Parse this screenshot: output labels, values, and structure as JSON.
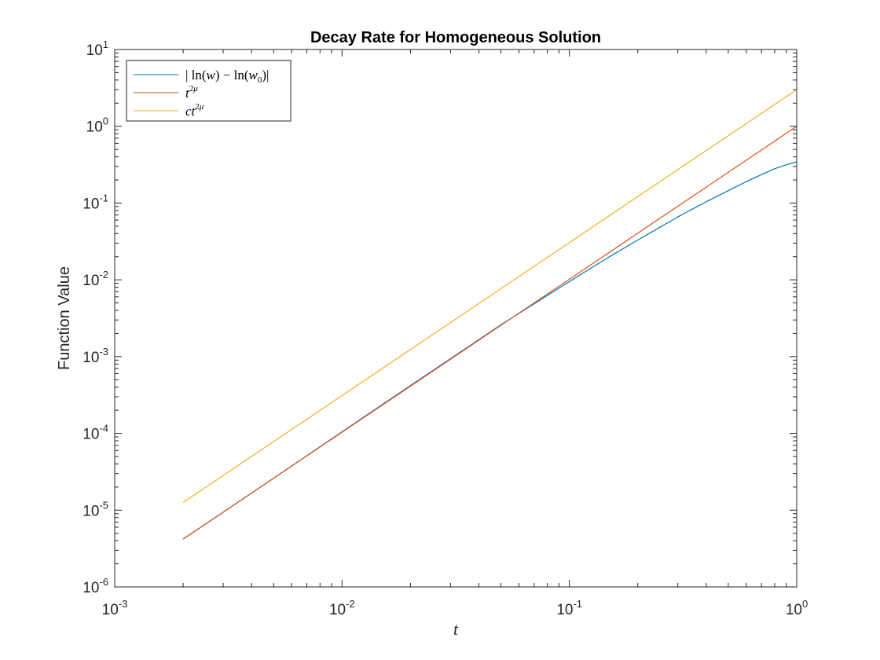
{
  "chart_data": {
    "type": "line",
    "title": "Decay Rate for Homogeneous Solution",
    "xlabel": "t",
    "ylabel": "Function Value",
    "xscale": "log",
    "yscale": "log",
    "xlim": [
      0.001,
      1
    ],
    "ylim": [
      1e-06,
      10
    ],
    "x_ticks": [
      {
        "value": 0.001,
        "base": "10",
        "exp": "-3"
      },
      {
        "value": 0.01,
        "base": "10",
        "exp": "-2"
      },
      {
        "value": 0.1,
        "base": "10",
        "exp": "-1"
      },
      {
        "value": 1,
        "base": "10",
        "exp": "0"
      }
    ],
    "y_ticks": [
      {
        "value": 1e-06,
        "base": "10",
        "exp": "-6"
      },
      {
        "value": 1e-05,
        "base": "10",
        "exp": "-5"
      },
      {
        "value": 0.0001,
        "base": "10",
        "exp": "-4"
      },
      {
        "value": 0.001,
        "base": "10",
        "exp": "-3"
      },
      {
        "value": 0.01,
        "base": "10",
        "exp": "-2"
      },
      {
        "value": 0.1,
        "base": "10",
        "exp": "-1"
      },
      {
        "value": 1,
        "base": "10",
        "exp": "0"
      },
      {
        "value": 10,
        "base": "10",
        "exp": "1"
      }
    ],
    "grid": false,
    "legend_position": "top-left",
    "series": [
      {
        "name": "|ln(w) − ln(w0)|",
        "color": "#0072BD",
        "x": [
          0.002,
          0.005,
          0.01,
          0.02,
          0.05,
          0.1,
          0.15,
          0.2,
          0.3,
          0.4,
          0.5,
          0.6,
          0.7,
          0.8,
          0.9,
          1.0
        ],
        "y": [
          4.2e-06,
          2.6e-05,
          0.000105,
          0.00042,
          0.0026,
          0.0095,
          0.02,
          0.033,
          0.066,
          0.104,
          0.145,
          0.19,
          0.235,
          0.28,
          0.315,
          0.345
        ]
      },
      {
        "name": "t^2μ",
        "color": "#D95319",
        "x": [
          0.002,
          1.0
        ],
        "y": [
          4.2e-06,
          1.0
        ]
      },
      {
        "name": "ct^2μ",
        "color": "#EDB120",
        "x": [
          0.002,
          1.0
        ],
        "y": [
          1.26e-05,
          3.0
        ]
      }
    ]
  }
}
